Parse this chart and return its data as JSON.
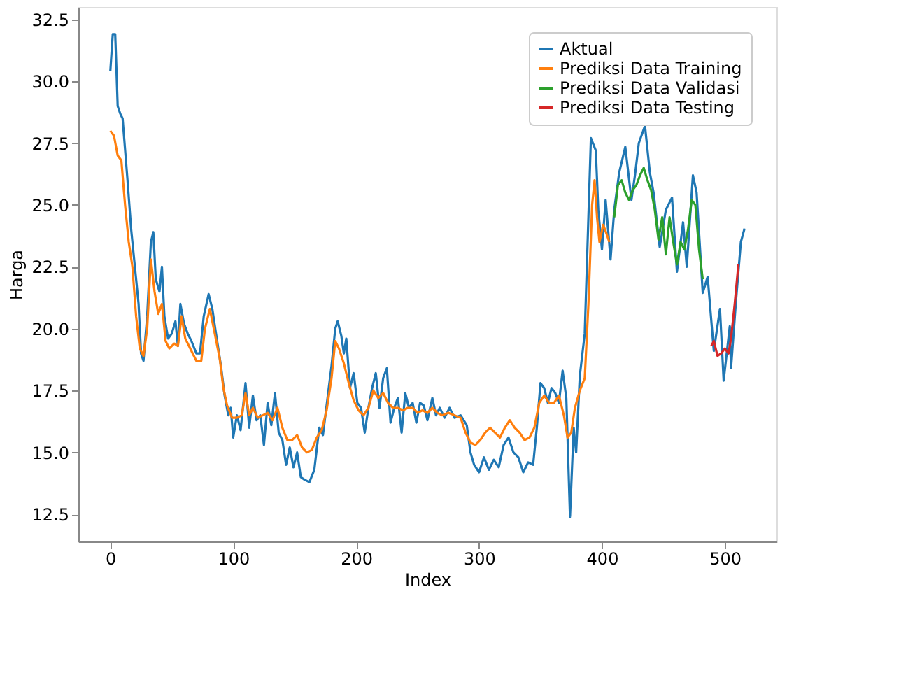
{
  "chart_data": {
    "type": "line",
    "xlabel": "Index",
    "ylabel": "Harga",
    "xlim": [
      -26,
      542
    ],
    "ylim": [
      11.4,
      33.0
    ],
    "xticks": [
      0,
      100,
      200,
      300,
      400,
      500
    ],
    "yticks": [
      12.5,
      {
        "value": 15,
        "label": "15.0"
      },
      17.5,
      {
        "value": 20,
        "label": "20.0"
      },
      22.5,
      {
        "value": 25,
        "label": "25.0"
      },
      27.5,
      {
        "value": 30,
        "label": "30.0"
      },
      32.5
    ],
    "legend": "top right",
    "grid": false,
    "series": [
      {
        "name": "Aktual",
        "color": "#1f77b4",
        "x": [
          0,
          2,
          4,
          6,
          8,
          10,
          14,
          17,
          20,
          23,
          25,
          27,
          30,
          33,
          35,
          37,
          40,
          42,
          44,
          47,
          50,
          53,
          55,
          57,
          60,
          63,
          66,
          70,
          73,
          76,
          80,
          83,
          86,
          90,
          93,
          96,
          98,
          100,
          103,
          106,
          110,
          113,
          116,
          119,
          122,
          125,
          128,
          131,
          134,
          137,
          140,
          143,
          146,
          149,
          152,
          155,
          158,
          162,
          166,
          170,
          173,
          177,
          180,
          183,
          185,
          188,
          190,
          192,
          195,
          198,
          201,
          204,
          207,
          210,
          213,
          216,
          219,
          222,
          225,
          228,
          231,
          234,
          237,
          240,
          243,
          246,
          249,
          252,
          255,
          258,
          262,
          265,
          268,
          272,
          276,
          280,
          285,
          290,
          293,
          296,
          300,
          304,
          308,
          312,
          316,
          320,
          324,
          328,
          332,
          336,
          340,
          344,
          347,
          350,
          353,
          356,
          359,
          362,
          365,
          368,
          371,
          374,
          377,
          379,
          382,
          386,
          391,
          395,
          397,
          400,
          403,
          407,
          410,
          414,
          419,
          424,
          427,
          430,
          435,
          439,
          442,
          447,
          452,
          457,
          461,
          466,
          469,
          474,
          477,
          482,
          486,
          491,
          496,
          499,
          504,
          505,
          509,
          513,
          516
        ],
        "values": [
          30.4,
          31.9,
          31.9,
          29.0,
          28.7,
          28.5,
          26.0,
          24.0,
          22.5,
          21.0,
          19.0,
          18.7,
          20.5,
          23.5,
          23.9,
          22.0,
          21.5,
          22.5,
          20.5,
          19.6,
          19.8,
          20.3,
          19.3,
          21.0,
          20.2,
          19.8,
          19.5,
          19.0,
          19.0,
          20.5,
          21.4,
          20.8,
          19.8,
          18.5,
          17.3,
          16.5,
          16.8,
          15.6,
          16.5,
          15.9,
          17.8,
          16.0,
          17.3,
          16.3,
          16.5,
          15.3,
          17.0,
          16.1,
          17.4,
          15.8,
          15.5,
          14.5,
          15.2,
          14.4,
          15.0,
          14.0,
          13.9,
          13.8,
          14.3,
          16.0,
          15.7,
          17.3,
          18.5,
          20.0,
          20.3,
          19.7,
          19.0,
          19.6,
          17.6,
          18.2,
          17.0,
          16.8,
          15.8,
          16.8,
          17.6,
          18.2,
          16.8,
          18.0,
          18.4,
          16.2,
          16.8,
          17.2,
          15.8,
          17.4,
          16.8,
          17.0,
          16.2,
          17.0,
          16.9,
          16.3,
          17.2,
          16.5,
          16.8,
          16.4,
          16.8,
          16.4,
          16.5,
          16.1,
          15.0,
          14.5,
          14.2,
          14.8,
          14.3,
          14.7,
          14.4,
          15.3,
          15.6,
          15.0,
          14.8,
          14.2,
          14.6,
          14.5,
          16.0,
          17.8,
          17.6,
          17.0,
          17.6,
          17.4,
          17.0,
          18.3,
          17.2,
          12.4,
          16.0,
          15.0,
          18.1,
          19.8,
          27.7,
          27.2,
          24.8,
          23.2,
          25.2,
          22.8,
          24.8,
          26.3,
          27.35,
          25.2,
          26.25,
          27.5,
          28.2,
          26.3,
          25.5,
          23.3,
          24.8,
          25.3,
          22.3,
          24.3,
          22.5,
          26.2,
          25.5,
          21.45,
          22.1,
          19.1,
          20.8,
          17.9,
          20.1,
          18.4,
          21.1,
          23.5,
          24.05
        ]
      },
      {
        "name": "Prediksi Data Training",
        "color": "#ff7f0e",
        "x": [
          0,
          3,
          6,
          9,
          12,
          15,
          18,
          21,
          24,
          27,
          30,
          33,
          36,
          39,
          42,
          45,
          48,
          52,
          55,
          58,
          61,
          64,
          67,
          70,
          74,
          77,
          81,
          85,
          89,
          92,
          95,
          99,
          103,
          107,
          110,
          113,
          116,
          120,
          124,
          128,
          132,
          136,
          140,
          144,
          148,
          152,
          156,
          160,
          164,
          168,
          172,
          176,
          180,
          183,
          186,
          190,
          194,
          198,
          202,
          206,
          210,
          214,
          218,
          222,
          226,
          230,
          234,
          238,
          242,
          246,
          250,
          254,
          258,
          262,
          266,
          270,
          275,
          280,
          285,
          289,
          293,
          297,
          301,
          305,
          309,
          313,
          317,
          321,
          325,
          329,
          333,
          337,
          341,
          345,
          349,
          353,
          357,
          361,
          365,
          369,
          372,
          375,
          378,
          382,
          386,
          389,
          392,
          394,
          396,
          398,
          401,
          404,
          406
        ],
        "values": [
          28.0,
          27.8,
          27.0,
          26.8,
          25.0,
          23.5,
          22.5,
          20.5,
          19.2,
          18.9,
          20.0,
          22.8,
          21.5,
          20.6,
          21.0,
          19.5,
          19.2,
          19.4,
          19.3,
          20.5,
          19.6,
          19.3,
          19.0,
          18.7,
          18.7,
          20.0,
          20.8,
          19.8,
          18.8,
          17.6,
          16.9,
          16.4,
          16.4,
          16.5,
          17.4,
          16.5,
          16.8,
          16.4,
          16.5,
          16.6,
          16.3,
          16.8,
          16.0,
          15.5,
          15.5,
          15.7,
          15.2,
          15.0,
          15.1,
          15.6,
          15.9,
          16.7,
          18.0,
          19.5,
          19.2,
          18.6,
          17.8,
          17.1,
          16.7,
          16.5,
          16.8,
          17.5,
          17.2,
          17.4,
          17.0,
          16.8,
          16.8,
          16.7,
          16.8,
          16.8,
          16.6,
          16.7,
          16.6,
          16.8,
          16.6,
          16.5,
          16.6,
          16.5,
          16.4,
          15.8,
          15.4,
          15.3,
          15.5,
          15.8,
          16.0,
          15.8,
          15.6,
          16.0,
          16.3,
          16.0,
          15.8,
          15.5,
          15.6,
          16.0,
          17.0,
          17.3,
          17.0,
          17.0,
          17.3,
          16.5,
          15.6,
          15.8,
          16.8,
          17.5,
          18.0,
          21.0,
          25.0,
          26.0,
          24.5,
          23.5,
          24.2,
          23.8,
          23.5
        ]
      },
      {
        "name": "Prediksi Data Validasi",
        "color": "#2ca02c",
        "x": [
          410,
          413,
          416,
          419,
          422,
          425,
          428,
          431,
          434,
          437,
          440,
          443,
          446,
          449,
          452,
          455,
          458,
          461,
          464,
          467,
          470,
          473,
          476,
          479,
          482
        ],
        "values": [
          24.5,
          25.8,
          26.0,
          25.5,
          25.2,
          25.6,
          25.8,
          26.2,
          26.5,
          26.0,
          25.6,
          24.8,
          23.6,
          24.5,
          23.0,
          24.5,
          23.5,
          22.6,
          23.5,
          23.2,
          24.0,
          25.2,
          25.0,
          23.2,
          22.0
        ]
      },
      {
        "name": "Prediksi Data Testing",
        "color": "#d62728",
        "x": [
          489,
          491,
          494,
          497,
          500,
          503,
          505,
          508,
          511
        ],
        "values": [
          19.3,
          19.5,
          18.9,
          19.0,
          19.2,
          19.0,
          19.6,
          21.0,
          22.6
        ]
      }
    ]
  }
}
